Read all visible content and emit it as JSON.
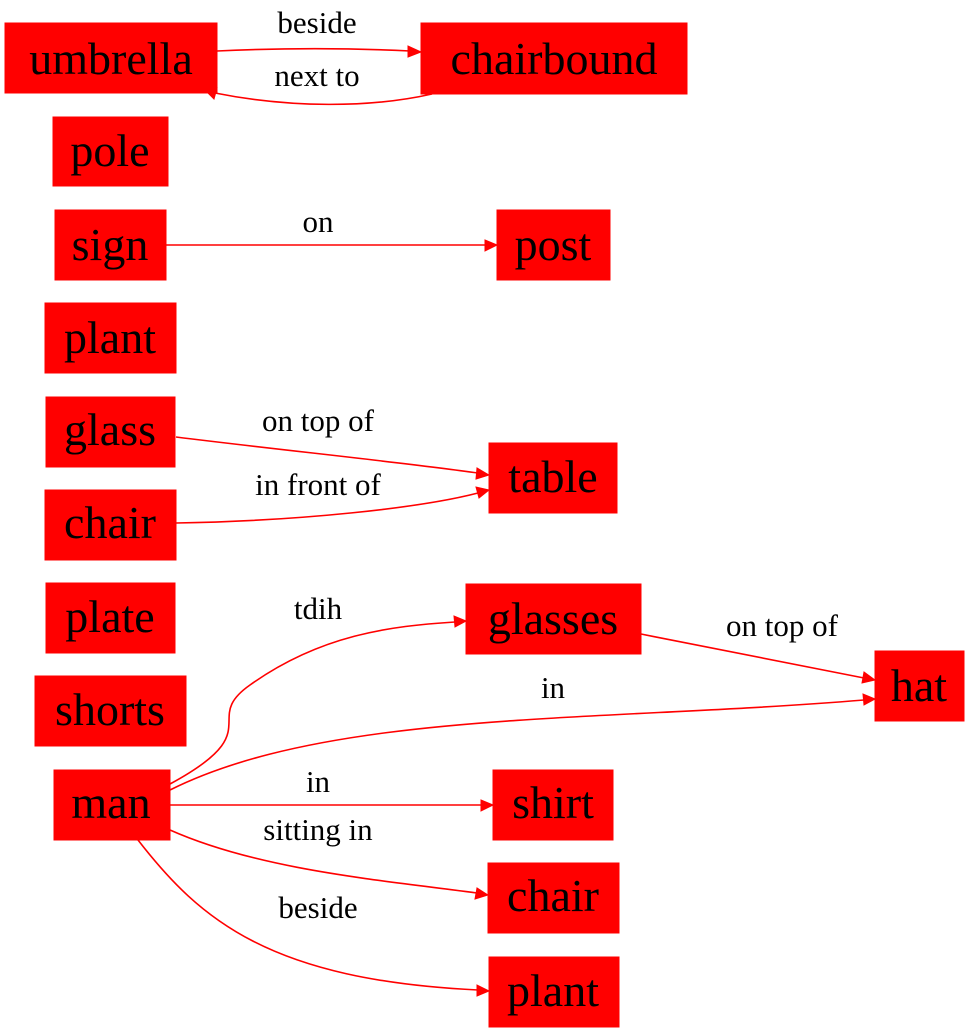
{
  "colors": {
    "node_fill": "#ff0000",
    "edge": "#ff0000",
    "text": "#000000",
    "background": "#ffffff"
  },
  "nodes": {
    "umbrella": "umbrella",
    "chairbound": "chairbound",
    "pole": "pole",
    "sign": "sign",
    "post": "post",
    "plant_left": "plant",
    "glass": "glass",
    "table": "table",
    "chair_left": "chair",
    "plate": "plate",
    "shorts": "shorts",
    "man": "man",
    "glasses": "glasses",
    "hat": "hat",
    "shirt": "shirt",
    "chair_right": "chair",
    "plant_right": "plant"
  },
  "edges": [
    {
      "from": "umbrella",
      "to": "chairbound",
      "label": "beside"
    },
    {
      "from": "chairbound",
      "to": "umbrella",
      "label": "next to"
    },
    {
      "from": "sign",
      "to": "post",
      "label": "on"
    },
    {
      "from": "glass",
      "to": "table",
      "label": "on top of"
    },
    {
      "from": "chair_left",
      "to": "table",
      "label": "in front of"
    },
    {
      "from": "man",
      "to": "glasses",
      "label": "tdih"
    },
    {
      "from": "glasses",
      "to": "hat",
      "label": "on top of"
    },
    {
      "from": "man",
      "to": "hat",
      "label": "in"
    },
    {
      "from": "man",
      "to": "shirt",
      "label": "in"
    },
    {
      "from": "man",
      "to": "chair_right",
      "label": "sitting in"
    },
    {
      "from": "man",
      "to": "plant_right",
      "label": "beside"
    }
  ]
}
